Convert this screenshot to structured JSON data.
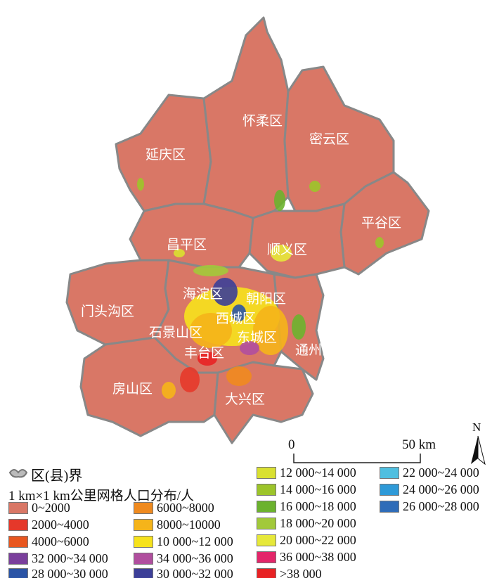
{
  "districts": [
    {
      "name": "延庆区"
    },
    {
      "name": "怀柔区"
    },
    {
      "name": "密云区"
    },
    {
      "name": "平谷区"
    },
    {
      "name": "顺义区"
    },
    {
      "name": "昌平区"
    },
    {
      "name": "门头沟区"
    },
    {
      "name": "海淀区"
    },
    {
      "name": "朝阳区"
    },
    {
      "name": "西城区"
    },
    {
      "name": "石景山区"
    },
    {
      "name": "东城区"
    },
    {
      "name": "丰台区"
    },
    {
      "name": "通州区"
    },
    {
      "name": "房山区"
    },
    {
      "name": "大兴区"
    }
  ],
  "scale_bar": {
    "start": "0",
    "end": "50 km"
  },
  "north_arrow": "N",
  "legend": {
    "boundary_label": "区(县)界",
    "title": "1 km×1 km公里网格人口分布/人",
    "classes": [
      {
        "label": "0~2000",
        "color": "#d97766"
      },
      {
        "label": "2000~4000",
        "color": "#e5382a"
      },
      {
        "label": "4000~6000",
        "color": "#e8561f"
      },
      {
        "label": "32 000~34 000",
        "color": "#7a3f9c"
      },
      {
        "label": "28 000~30 000",
        "color": "#2a54a6"
      },
      {
        "label": "6000~8000",
        "color": "#ef8a1f"
      },
      {
        "label": "8000~10000",
        "color": "#f5b41a"
      },
      {
        "label": "10 000~12 000",
        "color": "#f6e21c"
      },
      {
        "label": "34 000~36 000",
        "color": "#b04e9e"
      },
      {
        "label": "30 000~32 000",
        "color": "#3c3f98"
      },
      {
        "label": "12 000~14 000",
        "color": "#d9e030"
      },
      {
        "label": "14 000~16 000",
        "color": "#9cc42a"
      },
      {
        "label": "16 000~18 000",
        "color": "#6bb22e"
      },
      {
        "label": "18 000~20 000",
        "color": "#a2c93a"
      },
      {
        "label": "20 000~22 000",
        "color": "#e6e83a"
      },
      {
        "label": "36 000~38 000",
        "color": "#e3266a"
      },
      {
        "label": ">38 000",
        "color": "#e82224"
      },
      {
        "label": "22 000~24 000",
        "color": "#4fbfe0"
      },
      {
        "label": "24 000~26 000",
        "color": "#2e9ad8"
      },
      {
        "label": "26 000~28 000",
        "color": "#2f6cb8"
      }
    ]
  }
}
